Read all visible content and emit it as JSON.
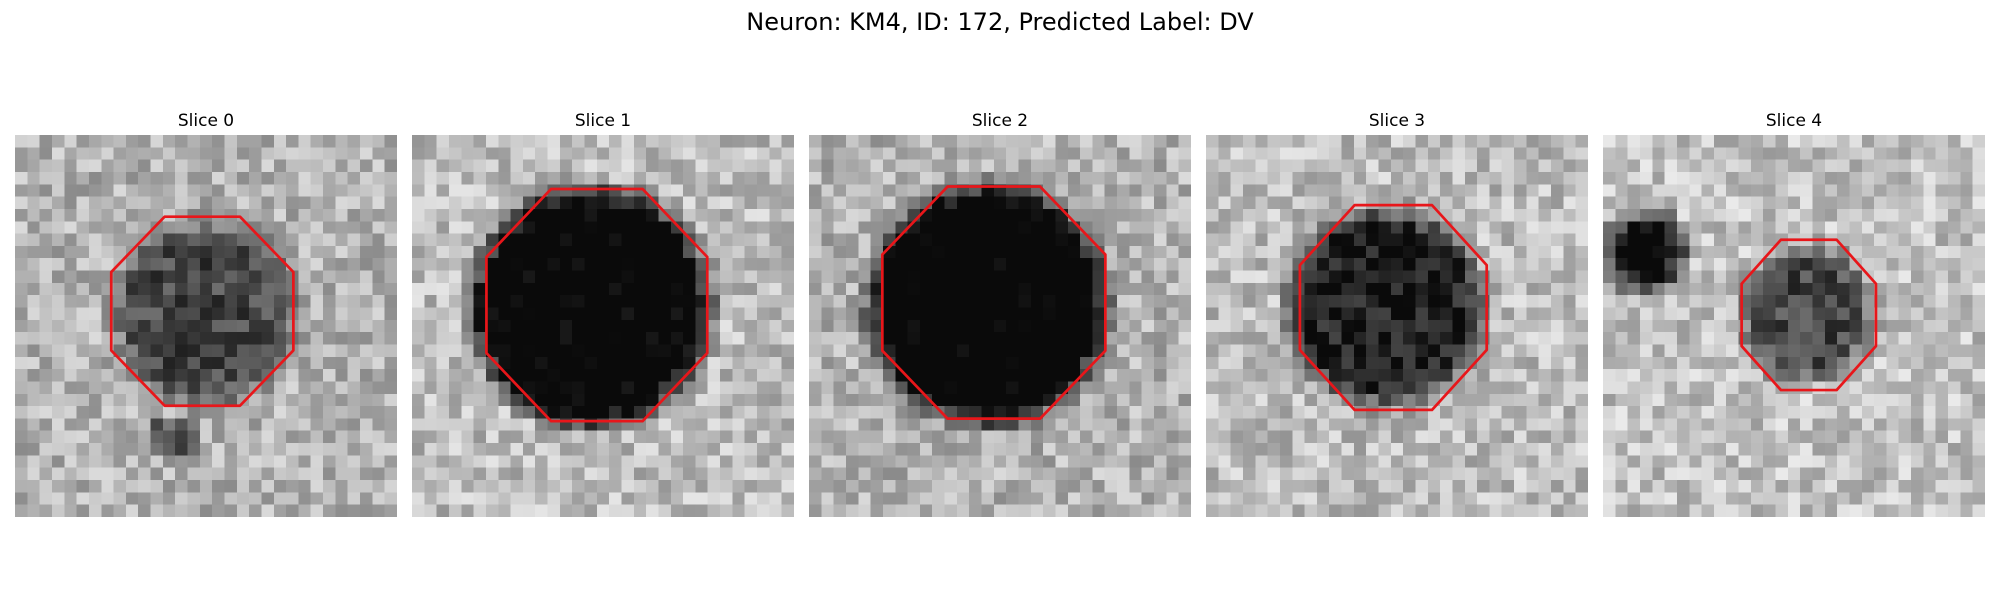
{
  "figure": {
    "title": "Neuron: KM4, ID: 172, Predicted Label: DV",
    "contour_color": "#e8161a"
  },
  "panels": [
    {
      "title": "Slice 0"
    },
    {
      "title": "Slice 1"
    },
    {
      "title": "Slice 2"
    },
    {
      "title": "Slice 3"
    },
    {
      "title": "Slice 4"
    }
  ]
}
